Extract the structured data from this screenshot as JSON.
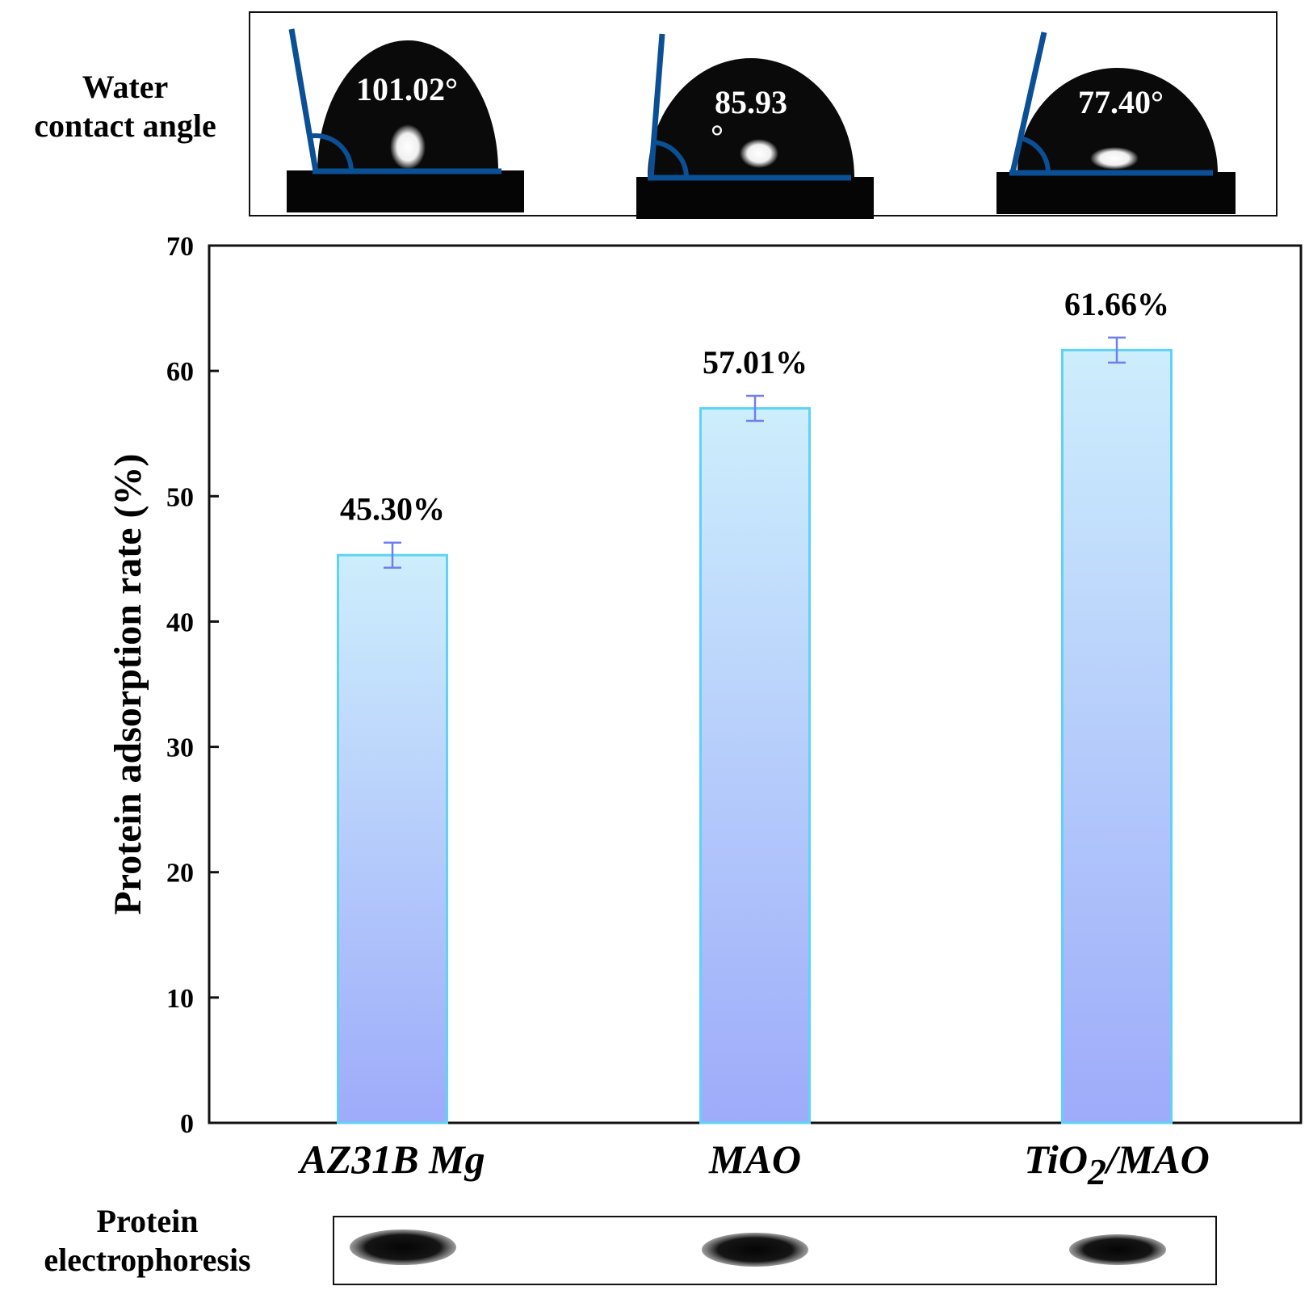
{
  "water_contact_angle": {
    "label_lines": [
      "Water",
      "contact angle"
    ],
    "angles": [
      {
        "sample": "AZ31B Mg",
        "text": "101.02°",
        "angle_deg": 101.02
      },
      {
        "sample": "MAO",
        "text_lines": [
          "85.93",
          "°"
        ],
        "angle_deg": 85.93
      },
      {
        "sample": "TiO2/MAO",
        "text": "77.40°",
        "angle_deg": 77.4
      }
    ]
  },
  "protein_electrophoresis": {
    "label_lines": [
      "Protein",
      "electrophoresis"
    ]
  },
  "colors": {
    "bar_top": "#cdeefc",
    "bar_bottom": "#9eabfa",
    "bar_edge": "#5fd3f5",
    "error_bar": "#6f7ff0",
    "angle_line": "#0b4f95"
  },
  "chart_data": {
    "type": "bar",
    "title": "",
    "xlabel": "",
    "ylabel": "Protein adsorption rate (%)",
    "ylim": [
      0,
      70
    ],
    "yticks": [
      0,
      10,
      20,
      30,
      40,
      50,
      60,
      70
    ],
    "categories": [
      "AZ31B Mg",
      "MAO",
      "TiO2/MAO"
    ],
    "category_labels": [
      {
        "main": "AZ31B Mg",
        "sub": "",
        "after": ""
      },
      {
        "main": "MAO",
        "sub": "",
        "after": ""
      },
      {
        "main": "TiO",
        "sub": "2",
        "after": "/MAO"
      }
    ],
    "values": [
      45.3,
      57.01,
      61.66
    ],
    "errors": [
      1.0,
      1.0,
      1.0
    ],
    "data_labels": [
      "45.30%",
      "57.01%",
      "61.66%"
    ],
    "grid": false
  }
}
